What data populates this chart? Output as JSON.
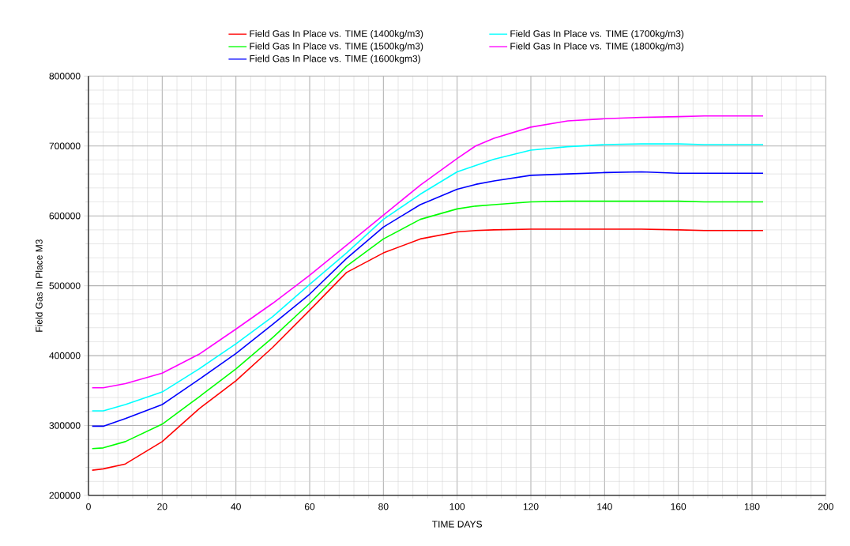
{
  "chart_data": {
    "type": "line",
    "xlabel": "TIME   DAYS",
    "ylabel": "Field Gas In Place   M3",
    "xlim": [
      0,
      200
    ],
    "ylim": [
      200000,
      800000
    ],
    "xticks": [
      0,
      20,
      40,
      60,
      80,
      100,
      120,
      140,
      160,
      180,
      200
    ],
    "yticks": [
      200000,
      300000,
      400000,
      500000,
      600000,
      700000,
      800000
    ],
    "grid": true,
    "legend": "top",
    "line_style": "solid",
    "x": [
      1,
      4,
      10,
      20,
      30,
      40,
      50,
      60,
      70,
      80,
      90,
      100,
      105,
      110,
      120,
      130,
      140,
      150,
      160,
      167,
      183
    ],
    "series": [
      {
        "name": "Field Gas In Place vs. TIME (1400kg/m3)",
        "color": "#ff0000",
        "values": [
          236000,
          238000,
          245000,
          277000,
          324000,
          364000,
          412000,
          465000,
          519000,
          547000,
          567000,
          577000,
          579000,
          580000,
          581000,
          581000,
          581000,
          581000,
          580000,
          579000,
          579000
        ]
      },
      {
        "name": "Field Gas In Place vs. TIME (1500kg/m3)",
        "color": "#00ff00",
        "values": [
          267000,
          268000,
          277000,
          302000,
          341000,
          381000,
          426000,
          475000,
          528000,
          567000,
          595000,
          610000,
          614000,
          616000,
          620000,
          621000,
          621000,
          621000,
          621000,
          620000,
          620000
        ]
      },
      {
        "name": "Field Gas In Place vs. TIME (1600kgm3)",
        "color": "#0000ff",
        "values": [
          299000,
          299000,
          310000,
          330000,
          366000,
          403000,
          445000,
          488000,
          539000,
          584000,
          616000,
          638000,
          645000,
          650000,
          658000,
          660000,
          662000,
          663000,
          661000,
          661000,
          661000
        ]
      },
      {
        "name": "Field Gas In Place vs. TIME (1700kg/m3)",
        "color": "#00ffff",
        "values": [
          321000,
          321000,
          330000,
          348000,
          381000,
          417000,
          456000,
          502000,
          547000,
          595000,
          631000,
          663000,
          672000,
          681000,
          694000,
          699000,
          702000,
          703000,
          703000,
          702000,
          702000
        ]
      },
      {
        "name": "Field Gas In Place  vs. TIME (1800kg/m3)",
        "color": "#ff00ff",
        "values": [
          354000,
          354000,
          360000,
          375000,
          402000,
          438000,
          475000,
          515000,
          558000,
          601000,
          644000,
          682000,
          700000,
          711000,
          727000,
          736000,
          739000,
          741000,
          742000,
          743000,
          743000
        ]
      }
    ]
  }
}
